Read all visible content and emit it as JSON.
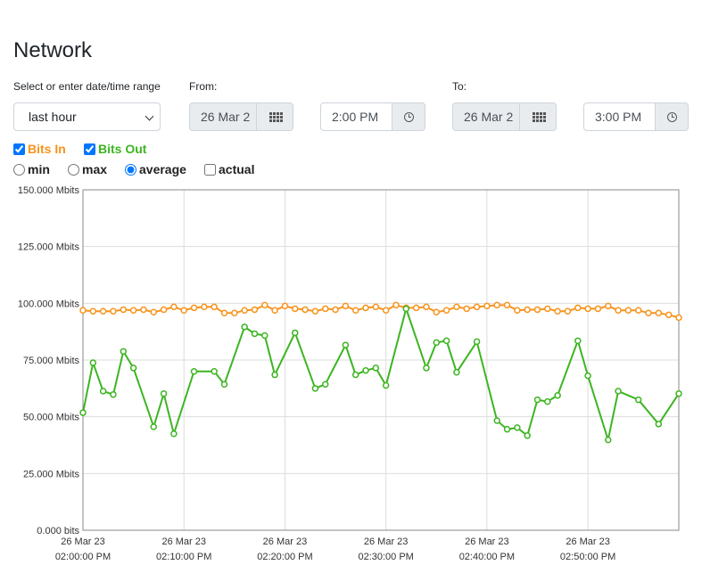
{
  "page": {
    "title": "Network"
  },
  "range": {
    "label": "Select or enter date/time range",
    "selected": "last hour"
  },
  "from": {
    "label": "From:",
    "date": "26 Mar 2",
    "time": "2:00 PM"
  },
  "to": {
    "label": "To:",
    "date": "26 Mar 2",
    "time": "3:00 PM"
  },
  "series_toggles": [
    {
      "label": "Bits In",
      "checked": true,
      "color": "#f7941d"
    },
    {
      "label": "Bits Out",
      "checked": true,
      "color": "#3cb521"
    }
  ],
  "modes": [
    {
      "label": "min",
      "type": "radio",
      "checked": false
    },
    {
      "label": "max",
      "type": "radio",
      "checked": false
    },
    {
      "label": "average",
      "type": "radio",
      "checked": true
    },
    {
      "label": "actual",
      "type": "checkbox",
      "checked": false
    }
  ],
  "chart_data": {
    "type": "line",
    "ylim": [
      0,
      150
    ],
    "xlim_minutes": [
      0,
      59
    ],
    "grid": true,
    "legend": "none",
    "y_ticks": [
      {
        "v": 0,
        "label": "0.000 bits"
      },
      {
        "v": 25,
        "label": "25.000 Mbits"
      },
      {
        "v": 50,
        "label": "50.000 Mbits"
      },
      {
        "v": 75,
        "label": "75.000 Mbits"
      },
      {
        "v": 100,
        "label": "100.000 Mbits"
      },
      {
        "v": 125,
        "label": "125.000 Mbits"
      },
      {
        "v": 150,
        "label": "150.000 Mbits"
      }
    ],
    "x_ticks": [
      {
        "m": 0,
        "date": "26 Mar 23",
        "time": "02:00:00 PM"
      },
      {
        "m": 10,
        "date": "26 Mar 23",
        "time": "02:10:00 PM"
      },
      {
        "m": 20,
        "date": "26 Mar 23",
        "time": "02:20:00 PM"
      },
      {
        "m": 30,
        "date": "26 Mar 23",
        "time": "02:30:00 PM"
      },
      {
        "m": 40,
        "date": "26 Mar 23",
        "time": "02:40:00 PM"
      },
      {
        "m": 50,
        "date": "26 Mar 23",
        "time": "02:50:00 PM"
      }
    ],
    "series": [
      {
        "color": "#f7941d",
        "points": [
          [
            0,
            96.9
          ],
          [
            1,
            96.5
          ],
          [
            2,
            96.5
          ],
          [
            3,
            96.5
          ],
          [
            4,
            97.2
          ],
          [
            5,
            96.9
          ],
          [
            6,
            97.2
          ],
          [
            7,
            96.1
          ],
          [
            8,
            97.2
          ],
          [
            9,
            98.4
          ],
          [
            10,
            96.9
          ],
          [
            11,
            98.0
          ],
          [
            12,
            98.4
          ],
          [
            13,
            98.4
          ],
          [
            14,
            95.7
          ],
          [
            15,
            95.7
          ],
          [
            16,
            96.9
          ],
          [
            17,
            97.2
          ],
          [
            18,
            99.2
          ],
          [
            19,
            96.9
          ],
          [
            20,
            98.8
          ],
          [
            21,
            97.6
          ],
          [
            22,
            97.2
          ],
          [
            23,
            96.5
          ],
          [
            24,
            97.6
          ],
          [
            25,
            97.2
          ],
          [
            26,
            98.8
          ],
          [
            27,
            96.9
          ],
          [
            28,
            98.0
          ],
          [
            29,
            98.4
          ],
          [
            30,
            96.9
          ],
          [
            31,
            99.2
          ],
          [
            32,
            98.0
          ],
          [
            33,
            98.0
          ],
          [
            34,
            98.4
          ],
          [
            35,
            96.1
          ],
          [
            36,
            96.9
          ],
          [
            37,
            98.4
          ],
          [
            38,
            97.6
          ],
          [
            39,
            98.4
          ],
          [
            40,
            98.8
          ],
          [
            41,
            99.2
          ],
          [
            42,
            99.2
          ],
          [
            43,
            96.9
          ],
          [
            44,
            97.2
          ],
          [
            45,
            97.2
          ],
          [
            46,
            97.6
          ],
          [
            47,
            96.5
          ],
          [
            48,
            96.5
          ],
          [
            49,
            98.0
          ],
          [
            50,
            97.6
          ],
          [
            51,
            97.6
          ],
          [
            52,
            98.8
          ],
          [
            53,
            96.9
          ],
          [
            54,
            96.9
          ],
          [
            55,
            96.9
          ],
          [
            56,
            95.7
          ],
          [
            57,
            95.7
          ],
          [
            58,
            94.9
          ],
          [
            59,
            93.7
          ]
        ]
      },
      {
        "color": "#3cb521",
        "points": [
          [
            0,
            51.8
          ],
          [
            1,
            73.8
          ],
          [
            2,
            61.3
          ],
          [
            3,
            59.8
          ],
          [
            4,
            78.8
          ],
          [
            5,
            71.5
          ],
          [
            7,
            45.6
          ],
          [
            8,
            60.2
          ],
          [
            9,
            42.5
          ],
          [
            11,
            70.0
          ],
          [
            13,
            70.0
          ],
          [
            14,
            64.3
          ],
          [
            16,
            89.6
          ],
          [
            17,
            86.6
          ],
          [
            18,
            85.8
          ],
          [
            19,
            68.5
          ],
          [
            21,
            87.0
          ],
          [
            23,
            62.5
          ],
          [
            24,
            64.3
          ],
          [
            26,
            81.6
          ],
          [
            27,
            68.5
          ],
          [
            28,
            70.4
          ],
          [
            29,
            71.5
          ],
          [
            30,
            63.8
          ],
          [
            32,
            97.6
          ],
          [
            34,
            71.5
          ],
          [
            35,
            82.7
          ],
          [
            36,
            83.5
          ],
          [
            37,
            69.6
          ],
          [
            39,
            83.1
          ],
          [
            41,
            48.3
          ],
          [
            42,
            44.5
          ],
          [
            43,
            45.2
          ],
          [
            44,
            41.7
          ],
          [
            45,
            57.5
          ],
          [
            46,
            56.7
          ],
          [
            47,
            59.4
          ],
          [
            49,
            83.5
          ],
          [
            50,
            68.1
          ],
          [
            52,
            39.8
          ],
          [
            53,
            61.3
          ],
          [
            55,
            57.5
          ],
          [
            57,
            46.8
          ],
          [
            59,
            60.2
          ]
        ]
      }
    ]
  }
}
